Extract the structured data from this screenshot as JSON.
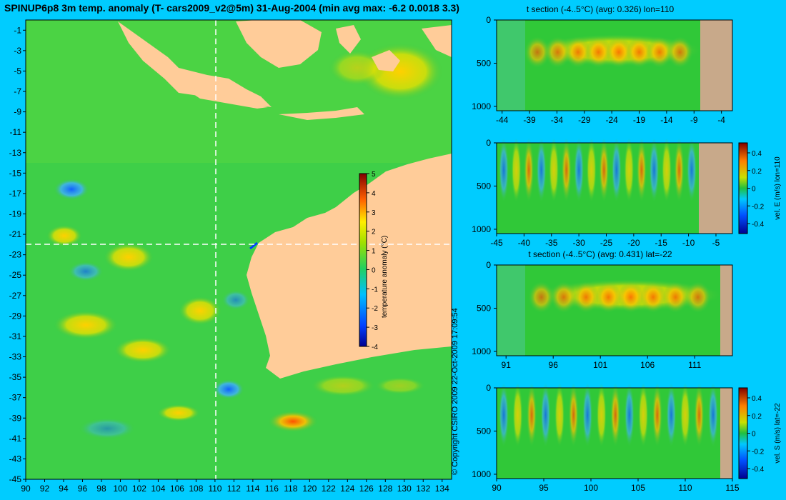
{
  "title": "SPINUP6p8 3m temp. anomaly (T- cars2009_v2@5m) 31-Aug-2004 (min avg max: -6.2 0.0018 3.3)",
  "copyright": "© Copyright CSIRO 2009   22-Oct-2009 17:09:54",
  "colors": {
    "background": "#00ccff",
    "land": "#ffcc99",
    "section_land": "#c8a98a",
    "crosshair": "#ffffff"
  },
  "chart_data": [
    {
      "id": "map",
      "type": "heatmap",
      "title": "SPINUP6p8 3m temp. anomaly (T- cars2009_v2@5m) 31-Aug-2004 (min avg max: -6.2 0.0018 3.3)",
      "x_ticks": [
        90,
        92,
        94,
        96,
        98,
        100,
        102,
        104,
        106,
        108,
        110,
        112,
        114,
        116,
        118,
        120,
        122,
        124,
        126,
        128,
        130,
        132,
        134
      ],
      "y_ticks": [
        -1,
        -3,
        -5,
        -7,
        -9,
        -11,
        -13,
        -15,
        -17,
        -19,
        -21,
        -23,
        -25,
        -27,
        -29,
        -31,
        -33,
        -35,
        -37,
        -39,
        -41,
        -43,
        -45
      ],
      "xlim": [
        90,
        135
      ],
      "ylim": [
        -45,
        0
      ],
      "crosshair": {
        "lon": 110,
        "lat": -22
      },
      "colorbar": {
        "label": "temperature anomaly (°C)",
        "ticks": [
          5,
          4,
          3,
          2,
          1,
          0,
          -1,
          -2,
          -3,
          -4
        ],
        "range": [
          -4,
          5
        ]
      }
    },
    {
      "id": "section1",
      "type": "heatmap",
      "title": "t section (-4..5°C) (avg: 0.326) lon=110",
      "x_ticks": [
        -44,
        -39,
        -34,
        -29,
        -24,
        -19,
        -14,
        -9,
        -4
      ],
      "y_ticks": [
        0,
        500,
        1000
      ],
      "xlim": [
        -45,
        -2
      ],
      "ylim": [
        1050,
        0
      ]
    },
    {
      "id": "section2",
      "type": "heatmap",
      "title": "",
      "x_ticks": [
        -45,
        -40,
        -35,
        -30,
        -25,
        -20,
        -15,
        -10,
        -5
      ],
      "y_ticks": [
        0,
        500,
        1000
      ],
      "xlim": [
        -45,
        -2
      ],
      "ylim": [
        1050,
        0
      ],
      "colorbar": {
        "label": "vel. E (m/s) lon=110",
        "ticks": [
          "0.4",
          "0.2",
          "0",
          "-0.2",
          "-0.4"
        ]
      }
    },
    {
      "id": "section3",
      "type": "heatmap",
      "title": "t section (-4..5°C) (avg: 0.431) lat=-22",
      "x_ticks": [
        91,
        96,
        101,
        106,
        111
      ],
      "y_ticks": [
        0,
        500,
        1000
      ],
      "xlim": [
        90,
        115
      ],
      "ylim": [
        1050,
        0
      ]
    },
    {
      "id": "section4",
      "type": "heatmap",
      "title": "",
      "x_ticks": [
        90,
        95,
        100,
        105,
        110,
        115
      ],
      "y_ticks": [
        0,
        500,
        1000
      ],
      "xlim": [
        90,
        115
      ],
      "ylim": [
        1050,
        0
      ],
      "colorbar": {
        "label": "vel. S (m/s) lat=-22",
        "ticks": [
          "0.4",
          "0.2",
          "0",
          "-0.2",
          "-0.4"
        ]
      }
    }
  ]
}
